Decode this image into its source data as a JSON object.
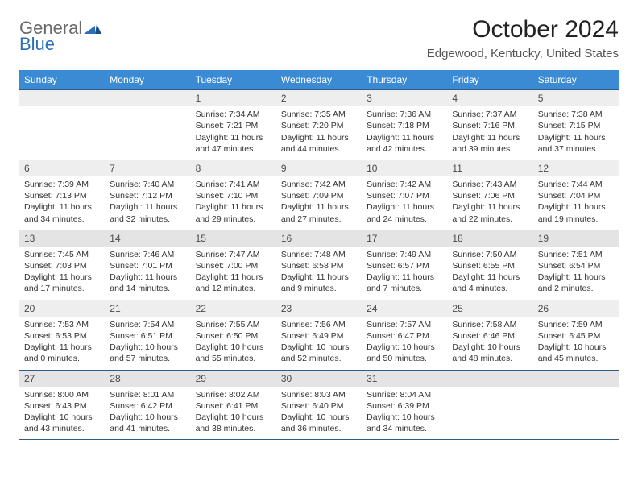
{
  "logo": {
    "top": "General",
    "bottom": "Blue"
  },
  "title": "October 2024",
  "subtitle": "Edgewood, Kentucky, United States",
  "colors": {
    "header_bg": "#3b8bd4",
    "header_text": "#ffffff",
    "rule": "#2f5b87",
    "daynum_bg": "#eeeeee",
    "daynum_bg_alt": "#e4e4e4",
    "text": "#333333",
    "logo_gray": "#6a6a6a",
    "logo_blue": "#2d6fb7"
  },
  "day_headers": [
    "Sunday",
    "Monday",
    "Tuesday",
    "Wednesday",
    "Thursday",
    "Friday",
    "Saturday"
  ],
  "weeks": [
    [
      null,
      null,
      {
        "n": "1",
        "sr": "Sunrise: 7:34 AM",
        "ss": "Sunset: 7:21 PM",
        "dl": "Daylight: 11 hours and 47 minutes."
      },
      {
        "n": "2",
        "sr": "Sunrise: 7:35 AM",
        "ss": "Sunset: 7:20 PM",
        "dl": "Daylight: 11 hours and 44 minutes."
      },
      {
        "n": "3",
        "sr": "Sunrise: 7:36 AM",
        "ss": "Sunset: 7:18 PM",
        "dl": "Daylight: 11 hours and 42 minutes."
      },
      {
        "n": "4",
        "sr": "Sunrise: 7:37 AM",
        "ss": "Sunset: 7:16 PM",
        "dl": "Daylight: 11 hours and 39 minutes."
      },
      {
        "n": "5",
        "sr": "Sunrise: 7:38 AM",
        "ss": "Sunset: 7:15 PM",
        "dl": "Daylight: 11 hours and 37 minutes."
      }
    ],
    [
      {
        "n": "6",
        "sr": "Sunrise: 7:39 AM",
        "ss": "Sunset: 7:13 PM",
        "dl": "Daylight: 11 hours and 34 minutes."
      },
      {
        "n": "7",
        "sr": "Sunrise: 7:40 AM",
        "ss": "Sunset: 7:12 PM",
        "dl": "Daylight: 11 hours and 32 minutes."
      },
      {
        "n": "8",
        "sr": "Sunrise: 7:41 AM",
        "ss": "Sunset: 7:10 PM",
        "dl": "Daylight: 11 hours and 29 minutes."
      },
      {
        "n": "9",
        "sr": "Sunrise: 7:42 AM",
        "ss": "Sunset: 7:09 PM",
        "dl": "Daylight: 11 hours and 27 minutes."
      },
      {
        "n": "10",
        "sr": "Sunrise: 7:42 AM",
        "ss": "Sunset: 7:07 PM",
        "dl": "Daylight: 11 hours and 24 minutes."
      },
      {
        "n": "11",
        "sr": "Sunrise: 7:43 AM",
        "ss": "Sunset: 7:06 PM",
        "dl": "Daylight: 11 hours and 22 minutes."
      },
      {
        "n": "12",
        "sr": "Sunrise: 7:44 AM",
        "ss": "Sunset: 7:04 PM",
        "dl": "Daylight: 11 hours and 19 minutes."
      }
    ],
    [
      {
        "n": "13",
        "sr": "Sunrise: 7:45 AM",
        "ss": "Sunset: 7:03 PM",
        "dl": "Daylight: 11 hours and 17 minutes."
      },
      {
        "n": "14",
        "sr": "Sunrise: 7:46 AM",
        "ss": "Sunset: 7:01 PM",
        "dl": "Daylight: 11 hours and 14 minutes."
      },
      {
        "n": "15",
        "sr": "Sunrise: 7:47 AM",
        "ss": "Sunset: 7:00 PM",
        "dl": "Daylight: 11 hours and 12 minutes."
      },
      {
        "n": "16",
        "sr": "Sunrise: 7:48 AM",
        "ss": "Sunset: 6:58 PM",
        "dl": "Daylight: 11 hours and 9 minutes."
      },
      {
        "n": "17",
        "sr": "Sunrise: 7:49 AM",
        "ss": "Sunset: 6:57 PM",
        "dl": "Daylight: 11 hours and 7 minutes."
      },
      {
        "n": "18",
        "sr": "Sunrise: 7:50 AM",
        "ss": "Sunset: 6:55 PM",
        "dl": "Daylight: 11 hours and 4 minutes."
      },
      {
        "n": "19",
        "sr": "Sunrise: 7:51 AM",
        "ss": "Sunset: 6:54 PM",
        "dl": "Daylight: 11 hours and 2 minutes."
      }
    ],
    [
      {
        "n": "20",
        "sr": "Sunrise: 7:53 AM",
        "ss": "Sunset: 6:53 PM",
        "dl": "Daylight: 11 hours and 0 minutes."
      },
      {
        "n": "21",
        "sr": "Sunrise: 7:54 AM",
        "ss": "Sunset: 6:51 PM",
        "dl": "Daylight: 10 hours and 57 minutes."
      },
      {
        "n": "22",
        "sr": "Sunrise: 7:55 AM",
        "ss": "Sunset: 6:50 PM",
        "dl": "Daylight: 10 hours and 55 minutes."
      },
      {
        "n": "23",
        "sr": "Sunrise: 7:56 AM",
        "ss": "Sunset: 6:49 PM",
        "dl": "Daylight: 10 hours and 52 minutes."
      },
      {
        "n": "24",
        "sr": "Sunrise: 7:57 AM",
        "ss": "Sunset: 6:47 PM",
        "dl": "Daylight: 10 hours and 50 minutes."
      },
      {
        "n": "25",
        "sr": "Sunrise: 7:58 AM",
        "ss": "Sunset: 6:46 PM",
        "dl": "Daylight: 10 hours and 48 minutes."
      },
      {
        "n": "26",
        "sr": "Sunrise: 7:59 AM",
        "ss": "Sunset: 6:45 PM",
        "dl": "Daylight: 10 hours and 45 minutes."
      }
    ],
    [
      {
        "n": "27",
        "sr": "Sunrise: 8:00 AM",
        "ss": "Sunset: 6:43 PM",
        "dl": "Daylight: 10 hours and 43 minutes."
      },
      {
        "n": "28",
        "sr": "Sunrise: 8:01 AM",
        "ss": "Sunset: 6:42 PM",
        "dl": "Daylight: 10 hours and 41 minutes."
      },
      {
        "n": "29",
        "sr": "Sunrise: 8:02 AM",
        "ss": "Sunset: 6:41 PM",
        "dl": "Daylight: 10 hours and 38 minutes."
      },
      {
        "n": "30",
        "sr": "Sunrise: 8:03 AM",
        "ss": "Sunset: 6:40 PM",
        "dl": "Daylight: 10 hours and 36 minutes."
      },
      {
        "n": "31",
        "sr": "Sunrise: 8:04 AM",
        "ss": "Sunset: 6:39 PM",
        "dl": "Daylight: 10 hours and 34 minutes."
      },
      null,
      null
    ]
  ]
}
